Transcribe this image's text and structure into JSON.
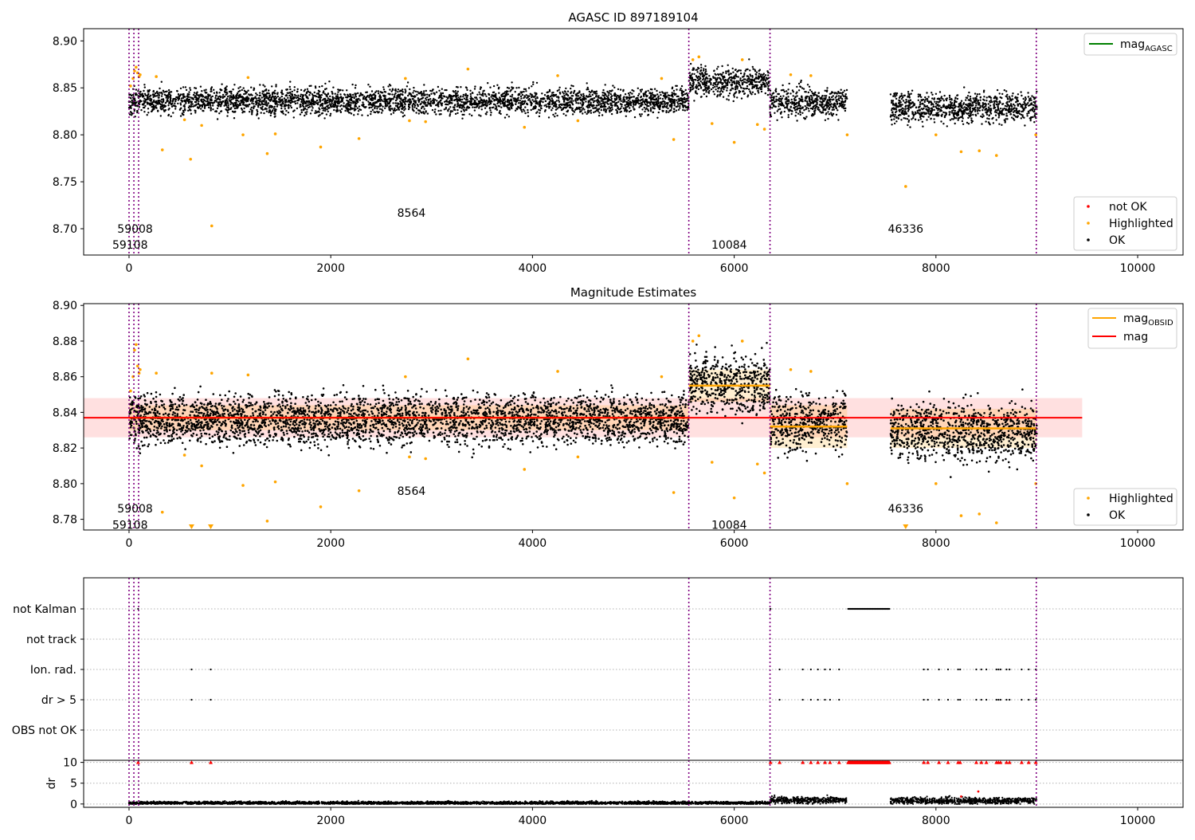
{
  "chart_data": [
    {
      "type": "scatter",
      "title": "AGASC ID 897189104",
      "xlim": [
        -450,
        10450
      ],
      "ylim": [
        8.672,
        8.913
      ],
      "x_ticks": [
        0,
        2000,
        4000,
        6000,
        8000,
        10000
      ],
      "x_tick_labels": [
        "0",
        "2000",
        "4000",
        "6000",
        "8000",
        "10000"
      ],
      "y_ticks": [
        8.7,
        8.75,
        8.8,
        8.85,
        8.9
      ],
      "y_tick_labels": [
        "8.70",
        "8.75",
        "8.80",
        "8.85",
        "8.90"
      ],
      "obsid_boundaries": [
        0,
        48,
        95,
        5550,
        6355,
        8995
      ],
      "obsid_labels": [
        {
          "text": "59008",
          "x": 60,
          "y": 8.7
        },
        {
          "text": "59108",
          "x": 10,
          "y": 8.683
        },
        {
          "text": "8564",
          "x": 2800,
          "y": 8.717
        },
        {
          "text": "10084",
          "x": 5950,
          "y": 8.683
        },
        {
          "text": "46336",
          "x": 7700,
          "y": 8.7
        }
      ],
      "segments": [
        {
          "x0": 0,
          "x1": 5550,
          "mean": 8.836,
          "spread": 0.007
        },
        {
          "x0": 5550,
          "x1": 6355,
          "mean": 8.856,
          "spread": 0.008
        },
        {
          "x0": 6355,
          "x1": 7120,
          "mean": 8.835,
          "spread": 0.008
        },
        {
          "x0": 7550,
          "x1": 9000,
          "mean": 8.829,
          "spread": 0.008
        }
      ],
      "highlighted_points": [
        [
          15,
          8.852
        ],
        [
          40,
          8.86
        ],
        [
          55,
          8.868
        ],
        [
          70,
          8.872
        ],
        [
          85,
          8.866
        ],
        [
          100,
          8.862
        ],
        [
          110,
          8.864
        ],
        [
          270,
          8.862
        ],
        [
          330,
          8.784
        ],
        [
          550,
          8.816
        ],
        [
          610,
          8.774
        ],
        [
          720,
          8.81
        ],
        [
          820,
          8.703
        ],
        [
          1130,
          8.8
        ],
        [
          1180,
          8.861
        ],
        [
          1370,
          8.78
        ],
        [
          1450,
          8.801
        ],
        [
          1900,
          8.787
        ],
        [
          2280,
          8.796
        ],
        [
          2740,
          8.86
        ],
        [
          2780,
          8.815
        ],
        [
          2940,
          8.814
        ],
        [
          3360,
          8.87
        ],
        [
          3920,
          8.808
        ],
        [
          4250,
          8.863
        ],
        [
          4450,
          8.815
        ],
        [
          5280,
          8.86
        ],
        [
          5400,
          8.795
        ],
        [
          5590,
          8.88
        ],
        [
          5650,
          8.883
        ],
        [
          5780,
          8.812
        ],
        [
          6000,
          8.792
        ],
        [
          6080,
          8.88
        ],
        [
          6230,
          8.811
        ],
        [
          6300,
          8.806
        ],
        [
          6560,
          8.864
        ],
        [
          6760,
          8.863
        ],
        [
          7120,
          8.8
        ],
        [
          7700,
          8.745
        ],
        [
          8000,
          8.8
        ],
        [
          8250,
          8.782
        ],
        [
          8430,
          8.783
        ],
        [
          8600,
          8.778
        ],
        [
          8990,
          8.8
        ]
      ],
      "legend_lines": [
        {
          "label_main": "mag",
          "label_sub": "AGASC",
          "color": "#008000"
        }
      ],
      "legend_points": [
        {
          "label": "not OK",
          "color": "#ff0000"
        },
        {
          "label": "Highlighted",
          "color": "#ffa500"
        },
        {
          "label": "OK",
          "color": "#000000"
        }
      ]
    },
    {
      "type": "scatter",
      "title": "Magnitude Estimates",
      "xlim": [
        -450,
        10450
      ],
      "ylim": [
        8.774,
        8.901
      ],
      "x_ticks": [
        0,
        2000,
        4000,
        6000,
        8000,
        10000
      ],
      "x_tick_labels": [
        "0",
        "2000",
        "4000",
        "6000",
        "8000",
        "10000"
      ],
      "y_ticks": [
        8.78,
        8.8,
        8.82,
        8.84,
        8.86,
        8.88,
        8.9
      ],
      "y_tick_labels": [
        "8.78",
        "8.80",
        "8.82",
        "8.84",
        "8.86",
        "8.88",
        "8.90"
      ],
      "obsid_boundaries": [
        0,
        48,
        95,
        5550,
        6355,
        8995
      ],
      "obsid_labels": [
        {
          "text": "59008",
          "x": 60,
          "y": 8.786
        },
        {
          "text": "59108",
          "x": 10,
          "y": 8.777
        },
        {
          "text": "8564",
          "x": 2800,
          "y": 8.796
        },
        {
          "text": "10084",
          "x": 5950,
          "y": 8.777
        },
        {
          "text": "46336",
          "x": 7700,
          "y": 8.786
        }
      ],
      "segments": [
        {
          "x0": 0,
          "x1": 5550,
          "mean": 8.836,
          "spread": 0.007
        },
        {
          "x0": 5550,
          "x1": 6355,
          "mean": 8.856,
          "spread": 0.008
        },
        {
          "x0": 6355,
          "x1": 7120,
          "mean": 8.835,
          "spread": 0.008
        },
        {
          "x0": 7550,
          "x1": 9000,
          "mean": 8.829,
          "spread": 0.008
        }
      ],
      "highlighted_points": [
        [
          15,
          8.852
        ],
        [
          40,
          8.86
        ],
        [
          55,
          8.875
        ],
        [
          70,
          8.878
        ],
        [
          85,
          8.866
        ],
        [
          100,
          8.862
        ],
        [
          110,
          8.864
        ],
        [
          270,
          8.862
        ],
        [
          330,
          8.784
        ],
        [
          550,
          8.816
        ],
        [
          720,
          8.81
        ],
        [
          820,
          8.862
        ],
        [
          1130,
          8.799
        ],
        [
          1180,
          8.861
        ],
        [
          1370,
          8.779
        ],
        [
          1450,
          8.801
        ],
        [
          1900,
          8.787
        ],
        [
          2280,
          8.796
        ],
        [
          2740,
          8.86
        ],
        [
          2780,
          8.815
        ],
        [
          2940,
          8.814
        ],
        [
          3360,
          8.87
        ],
        [
          3920,
          8.808
        ],
        [
          4250,
          8.863
        ],
        [
          4450,
          8.815
        ],
        [
          5280,
          8.86
        ],
        [
          5400,
          8.795
        ],
        [
          5590,
          8.88
        ],
        [
          5650,
          8.883
        ],
        [
          5780,
          8.812
        ],
        [
          6000,
          8.792
        ],
        [
          6080,
          8.88
        ],
        [
          6230,
          8.811
        ],
        [
          6300,
          8.806
        ],
        [
          6560,
          8.864
        ],
        [
          6760,
          8.863
        ],
        [
          7120,
          8.8
        ],
        [
          8000,
          8.8
        ],
        [
          8250,
          8.782
        ],
        [
          8430,
          8.783
        ],
        [
          8600,
          8.778
        ],
        [
          8990,
          8.8
        ]
      ],
      "out_of_range_markers": [
        620,
        810,
        7700
      ],
      "mag_mean": 8.837,
      "mag_band": [
        8.826,
        8.848
      ],
      "mag_line_x": [
        -450,
        9450
      ],
      "obsid_means": [
        {
          "x0": 0,
          "x1": 5550,
          "mag": 8.837,
          "band": [
            8.83,
            8.844
          ]
        },
        {
          "x0": 5550,
          "x1": 6355,
          "mag": 8.855,
          "band": [
            8.846,
            8.864
          ]
        },
        {
          "x0": 6355,
          "x1": 7120,
          "mag": 8.832,
          "band": [
            8.82,
            8.844
          ]
        },
        {
          "x0": 7550,
          "x1": 9000,
          "mag": 8.831,
          "band": [
            8.82,
            8.842
          ]
        }
      ],
      "legend_lines": [
        {
          "label_main": "mag",
          "label_sub": "OBSID",
          "color": "#ffa500"
        },
        {
          "label_main": "mag",
          "label_sub": "",
          "color": "#ff0000"
        }
      ],
      "legend_points": [
        {
          "label": "Highlighted",
          "color": "#ffa500"
        },
        {
          "label": "OK",
          "color": "#000000"
        }
      ]
    },
    {
      "type": "scatter",
      "title": "",
      "xlim": [
        -450,
        10450
      ],
      "x_ticks": [
        0,
        2000,
        4000,
        6000,
        8000,
        10000
      ],
      "x_tick_labels": [
        "0",
        "2000",
        "4000",
        "6000",
        "8000",
        "10000"
      ],
      "flag_labels": [
        "not Kalman",
        "not track",
        "Ion. rad.",
        "dr > 5",
        "OBS not OK"
      ],
      "obsid_boundaries": [
        0,
        48,
        95,
        5550,
        6355,
        8995
      ],
      "flags": {
        "not Kalman": {
          "points": [
            90,
            6360
          ],
          "ranges": [
            [
              7130,
              7540
            ]
          ]
        },
        "not track": {
          "points": [],
          "ranges": []
        },
        "Ion. rad.": {
          "points": [
            620,
            810,
            6450,
            6680,
            6760,
            6830,
            6900,
            6950,
            7040,
            7880,
            7920,
            8030,
            8120,
            8220,
            8240,
            8400,
            8450,
            8500,
            8600,
            8620,
            8640,
            8700,
            8730,
            8850,
            8920,
            8990
          ],
          "ranges": []
        },
        "dr > 5": {
          "points": [
            620,
            810,
            6450,
            6680,
            6760,
            6830,
            6900,
            6950,
            7040,
            7880,
            7920,
            8030,
            8120,
            8220,
            8240,
            8400,
            8450,
            8500,
            8600,
            8620,
            8640,
            8700,
            8730,
            8850,
            8920,
            8990
          ],
          "ranges": []
        },
        "OBS not OK": {
          "points": [],
          "ranges": []
        }
      },
      "dr_ylabel": "dr",
      "dr_ylim": [
        -0.8,
        10.5
      ],
      "dr_y_ticks": [
        0,
        5,
        10
      ],
      "dr_y_tick_labels": [
        "0",
        "5",
        "10"
      ],
      "dr_clipped_x": [
        90,
        620,
        810,
        6360,
        6450,
        6680,
        6760,
        6830,
        6900,
        6950,
        7040,
        7880,
        7920,
        8030,
        8120,
        8220,
        8240,
        8400,
        8450,
        8500,
        8600,
        8620,
        8640,
        8700,
        8730,
        8850,
        8920,
        8990
      ],
      "dr_clipped_ranges": [
        [
          7130,
          7540
        ]
      ],
      "dr_extra_points": [
        [
          8420,
          3.0
        ],
        [
          8250,
          1.8
        ]
      ],
      "dr_segments": [
        {
          "x0": 0,
          "x1": 6355,
          "mean": 0.25,
          "spread": 0.18
        },
        {
          "x0": 6355,
          "x1": 7120,
          "mean": 0.9,
          "spread": 0.4
        },
        {
          "x0": 7550,
          "x1": 9000,
          "mean": 0.8,
          "spread": 0.4
        }
      ]
    }
  ]
}
